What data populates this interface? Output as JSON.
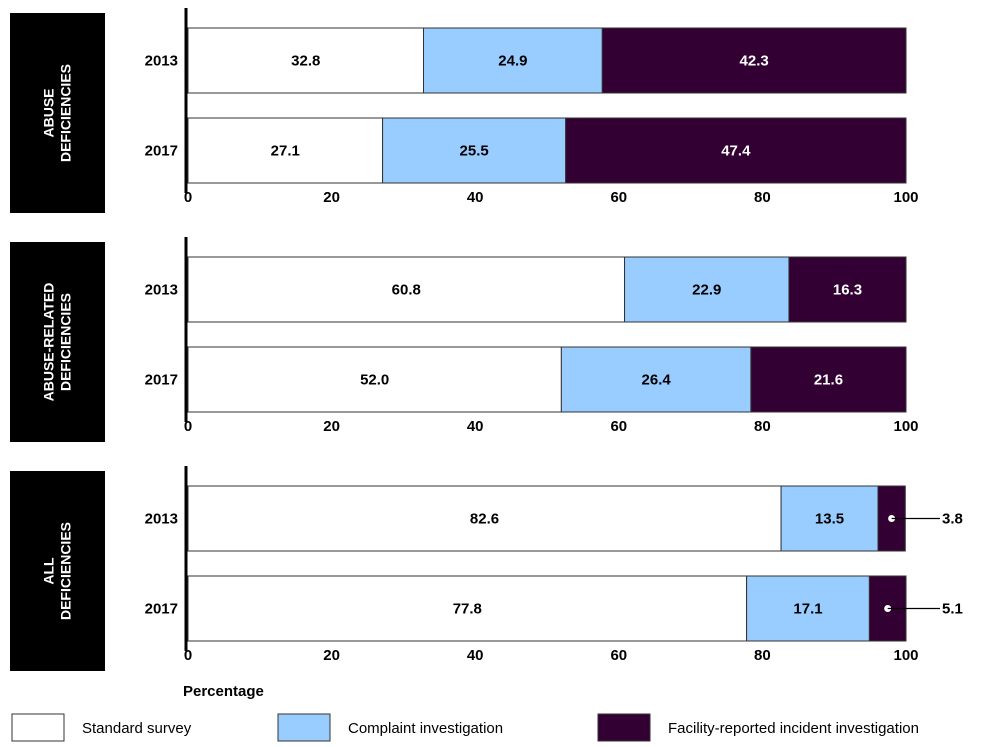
{
  "chart_data": {
    "type": "bar",
    "orientation": "horizontal",
    "stacked": true,
    "xlabel": "Percentage",
    "xlim": [
      0,
      100
    ],
    "xticks": [
      0,
      20,
      40,
      60,
      80,
      100
    ],
    "legend_position": "bottom",
    "series": [
      {
        "name": "Standard survey",
        "color": "#ffffff"
      },
      {
        "name": "Complaint investigation",
        "color": "#99ccff"
      },
      {
        "name": "Facility-reported incident investigation",
        "color": "#330033"
      }
    ],
    "panels": [
      {
        "title_lines": [
          "ABUSE",
          "DEFICIENCIES"
        ],
        "rows": [
          {
            "label": "2013",
            "values": [
              32.8,
              24.9,
              42.3
            ]
          },
          {
            "label": "2017",
            "values": [
              27.1,
              25.5,
              47.4
            ]
          }
        ]
      },
      {
        "title_lines": [
          "ABUSE-RELATED",
          "DEFICIENCIES"
        ],
        "rows": [
          {
            "label": "2013",
            "values": [
              60.8,
              22.9,
              16.3
            ]
          },
          {
            "label": "2017",
            "values": [
              52.0,
              26.4,
              21.6
            ]
          }
        ]
      },
      {
        "title_lines": [
          "ALL",
          "DEFICIENCIES"
        ],
        "rows": [
          {
            "label": "2013",
            "values": [
              82.6,
              13.5,
              3.8
            ],
            "outside_label_index": 2
          },
          {
            "label": "2017",
            "values": [
              77.8,
              17.1,
              5.1
            ],
            "outside_label_index": 2
          }
        ]
      }
    ]
  }
}
